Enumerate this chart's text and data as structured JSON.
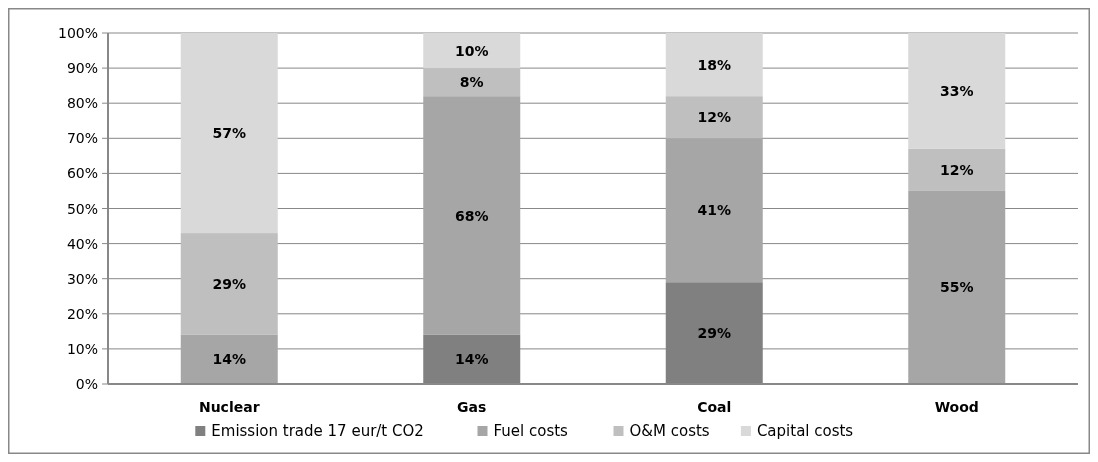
{
  "chart_data": {
    "type": "bar",
    "stacked": true,
    "categories": [
      "Nuclear",
      "Gas",
      "Coal",
      "Wood"
    ],
    "series": [
      {
        "name": "Emission trade 17 eur/t CO2",
        "color": "#808080",
        "values": [
          0,
          14,
          29,
          0
        ],
        "value_labels": [
          null,
          "14%",
          "29%",
          null
        ]
      },
      {
        "name": "Fuel costs",
        "color": "#a6a6a6",
        "values": [
          14,
          68,
          41,
          55
        ],
        "value_labels": [
          "14%",
          "68%",
          "41%",
          "55%"
        ]
      },
      {
        "name": "O&M costs",
        "color": "#bfbfbf",
        "values": [
          29,
          8,
          12,
          12
        ],
        "value_labels": [
          "29%",
          "8%",
          "12%",
          "12%"
        ]
      },
      {
        "name": "Capital costs",
        "color": "#d9d9d9",
        "values": [
          57,
          10,
          18,
          33
        ],
        "value_labels": [
          "57%",
          "10%",
          "18%",
          "33%"
        ]
      }
    ],
    "ylim": [
      0,
      100
    ],
    "yticks": [
      {
        "value": 0,
        "label": "0%"
      },
      {
        "value": 10,
        "label": "10%"
      },
      {
        "value": 20,
        "label": "20%"
      },
      {
        "value": 30,
        "label": "30%"
      },
      {
        "value": 40,
        "label": "40%"
      },
      {
        "value": 50,
        "label": "50%"
      },
      {
        "value": 60,
        "label": "60%"
      },
      {
        "value": 70,
        "label": "70%"
      },
      {
        "value": 80,
        "label": "80%"
      },
      {
        "value": 90,
        "label": "90%"
      },
      {
        "value": 100,
        "label": "100%"
      }
    ],
    "grid": "y",
    "legend": "bottom"
  }
}
